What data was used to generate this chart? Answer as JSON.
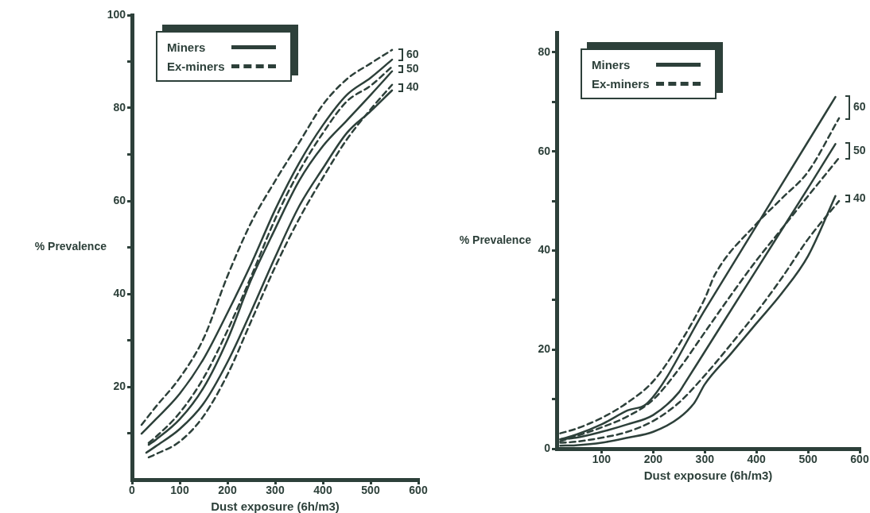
{
  "chart_data": [
    {
      "type": "line",
      "xlabel": "Dust exposure (6h/m3)",
      "ylabel": "% Prevalence",
      "xlim": [
        0,
        600
      ],
      "ylim": [
        0,
        100
      ],
      "xticks": [
        0,
        100,
        200,
        300,
        400,
        500,
        600
      ],
      "yticks": [
        {
          "value": 10,
          "label": null
        },
        20,
        {
          "value": 30,
          "label": null
        },
        40,
        {
          "value": 50,
          "label": null
        },
        60,
        {
          "value": 70,
          "label": null
        },
        80,
        {
          "value": 90,
          "label": null
        },
        100
      ],
      "grid": false,
      "legend": "top left",
      "marker": "none",
      "series": [
        {
          "name": "Miners",
          "color": "#2d403a",
          "line_style": "solid",
          "x": [
            20,
            50,
            100,
            150,
            200,
            250,
            300,
            350,
            400,
            450,
            500,
            545
          ],
          "values": [
            9.9,
            13,
            18.5,
            26,
            35.9,
            46.5,
            58.1,
            68.1,
            76.3,
            82.8,
            86.5,
            90.4
          ]
        },
        {
          "color": "#2d403a",
          "line_style": "solid",
          "x": [
            35,
            50,
            100,
            150,
            200,
            250,
            300,
            350,
            400,
            450,
            500,
            545
          ],
          "values": [
            7.5,
            8.6,
            13,
            19.8,
            30.1,
            43.1,
            54,
            64.3,
            71.8,
            77.3,
            82.8,
            87.9
          ]
        },
        {
          "color": "#2d403a",
          "line_style": "solid",
          "x": [
            30,
            50,
            100,
            150,
            200,
            250,
            300,
            350,
            400,
            450,
            500,
            545
          ],
          "values": [
            5.8,
            7.2,
            10.9,
            16.4,
            25.3,
            36.3,
            47.9,
            58.8,
            67,
            74.6,
            79.3,
            83.8
          ]
        },
        {
          "name": "Ex-miners",
          "color": "#2d403a",
          "line_style": "dashed",
          "x": [
            20,
            50,
            100,
            150,
            200,
            250,
            300,
            350,
            400,
            450,
            500,
            545
          ],
          "values": [
            11.8,
            15.7,
            21.9,
            30.4,
            43.8,
            55.4,
            64.3,
            72.5,
            80.7,
            86.2,
            89.6,
            92.5
          ]
        },
        {
          "color": "#2d403a",
          "line_style": "dashed",
          "x": [
            35,
            50,
            100,
            150,
            200,
            250,
            300,
            350,
            400,
            450,
            500,
            545
          ],
          "values": [
            7.9,
            9.2,
            14.4,
            21.9,
            32.1,
            43.8,
            56.1,
            66.3,
            74.6,
            81.4,
            84.8,
            88.9
          ]
        },
        {
          "color": "#2d403a",
          "line_style": "dashed",
          "x": [
            35,
            50,
            100,
            150,
            200,
            250,
            300,
            350,
            400,
            450,
            500,
            545
          ],
          "values": [
            4.8,
            5.5,
            8.2,
            13.7,
            22.6,
            34.2,
            45.8,
            56.1,
            65,
            73.2,
            79.7,
            85
          ]
        }
      ],
      "annotations": [
        "60",
        "50",
        "40"
      ]
    },
    {
      "type": "line",
      "xlabel": "Dust exposure (6h/m3)",
      "ylabel": "% Prevalence",
      "xlim": [
        13,
        600
      ],
      "ylim": [
        0,
        84
      ],
      "xticks": [
        100,
        200,
        300,
        400,
        500,
        600
      ],
      "yticks": [
        0,
        {
          "value": 10,
          "label": null
        },
        20,
        {
          "value": 30,
          "label": null
        },
        40,
        {
          "value": 50,
          "label": null
        },
        60,
        {
          "value": 70,
          "label": null
        },
        80
      ],
      "grid": false,
      "legend": "top left",
      "marker": "none",
      "series": [
        {
          "name": "Miners",
          "color": "#2d403a",
          "line_style": "solid",
          "x": [
            20,
            50,
            100,
            150,
            190,
            300,
            400,
            500,
            553
          ],
          "values": [
            1.9,
            2.8,
            4.9,
            7.7,
            9.3,
            28,
            45,
            62,
            71
          ]
        },
        {
          "color": "#2d403a",
          "line_style": "solid",
          "x": [
            20,
            50,
            100,
            150,
            200,
            250,
            260,
            300,
            400,
            500,
            553
          ],
          "values": [
            1.9,
            2.2,
            3.4,
            4.9,
            6.8,
            11.4,
            13,
            19.6,
            36.1,
            52.6,
            61.5
          ]
        },
        {
          "color": "#2d403a",
          "line_style": "solid",
          "x": [
            20,
            50,
            100,
            150,
            200,
            250,
            280,
            300,
            350,
            400,
            450,
            500,
            553
          ],
          "values": [
            0.6,
            0.7,
            1.2,
            2.2,
            3.4,
            6.2,
            9.3,
            13,
            19.1,
            25.3,
            31.5,
            38.9,
            51
          ]
        },
        {
          "name": "Ex-miners",
          "color": "#2d403a",
          "line_style": "dashed",
          "x": [
            20,
            50,
            100,
            150,
            200,
            250,
            300,
            320,
            400,
            450,
            500,
            560
          ],
          "values": [
            3.1,
            4,
            6.2,
            9.3,
            13.6,
            21,
            30.3,
            35.2,
            45.4,
            50.6,
            55.9,
            66.7
          ]
        },
        {
          "color": "#2d403a",
          "line_style": "dashed",
          "x": [
            20,
            50,
            100,
            150,
            200,
            250,
            300,
            350,
            400,
            450,
            500,
            560
          ],
          "values": [
            1.5,
            2.5,
            4.3,
            6.5,
            9.9,
            16.1,
            23.5,
            30.9,
            38,
            44.5,
            51,
            58.7
          ]
        },
        {
          "color": "#2d403a",
          "line_style": "dashed",
          "x": [
            20,
            50,
            100,
            150,
            200,
            250,
            300,
            350,
            400,
            450,
            500,
            560
          ],
          "values": [
            1.2,
            1.4,
            2.2,
            3.4,
            5.6,
            9.3,
            14.8,
            21,
            27.5,
            34.6,
            42.3,
            50
          ]
        }
      ],
      "annotations": [
        "60",
        "50",
        "40"
      ]
    }
  ]
}
